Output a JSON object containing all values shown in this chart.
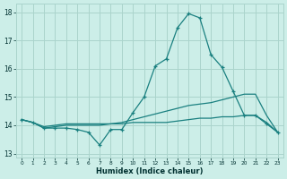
{
  "x": [
    0,
    1,
    2,
    3,
    4,
    5,
    6,
    7,
    8,
    9,
    10,
    11,
    12,
    13,
    14,
    15,
    16,
    17,
    18,
    19,
    20,
    21,
    22,
    23
  ],
  "line1_y": [
    14.2,
    14.1,
    13.9,
    13.9,
    13.9,
    13.85,
    13.75,
    13.3,
    13.85,
    13.85,
    14.45,
    15.0,
    16.1,
    16.35,
    17.45,
    17.95,
    17.8,
    16.5,
    16.05,
    15.2,
    14.35,
    14.35,
    14.05,
    13.75
  ],
  "line2_y": [
    14.2,
    14.1,
    13.9,
    13.95,
    14.0,
    14.0,
    14.0,
    14.0,
    14.05,
    14.1,
    14.2,
    14.3,
    14.4,
    14.5,
    14.6,
    14.7,
    14.75,
    14.8,
    14.9,
    15.0,
    15.1,
    15.1,
    14.35,
    13.75
  ],
  "line3_y": [
    14.2,
    14.1,
    13.95,
    14.0,
    14.05,
    14.05,
    14.05,
    14.05,
    14.05,
    14.05,
    14.1,
    14.1,
    14.1,
    14.1,
    14.15,
    14.2,
    14.25,
    14.25,
    14.3,
    14.3,
    14.35,
    14.35,
    14.1,
    13.75
  ],
  "color": "#1a8080",
  "bg_color": "#cceee8",
  "grid_color": "#aad4cc",
  "xlabel": "Humidex (Indice chaleur)",
  "ylim": [
    12.85,
    18.3
  ],
  "yticks": [
    13,
    14,
    15,
    16,
    17,
    18
  ],
  "xtick_labels": [
    "0",
    "1",
    "2",
    "3",
    "4",
    "5",
    "6",
    "7",
    "8",
    "9",
    "10",
    "11",
    "12",
    "13",
    "14",
    "15",
    "16",
    "17",
    "18",
    "19",
    "20",
    "21",
    "22",
    "23"
  ]
}
